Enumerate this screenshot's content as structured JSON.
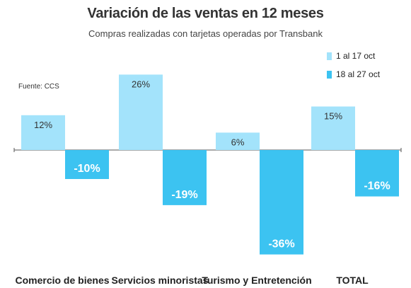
{
  "colors": {
    "series_a": "#a3e3fb",
    "series_b": "#3cc3f1",
    "axis": "#555555",
    "label_dark": "#333333",
    "label_light": "#ffffff"
  },
  "chart_data": {
    "type": "bar",
    "title": "Variación de las ventas en 12 meses",
    "subtitle": "Compras realizadas con tarjetas operadas por Transbank",
    "source": "Fuente: CCS",
    "categories": [
      "Comercio de bienes",
      "Servicios minoristas",
      "Turismo y Entretención",
      "TOTAL"
    ],
    "series": [
      {
        "name": "1 al 17 oct",
        "values": [
          12,
          26,
          6,
          15
        ],
        "labels": [
          "12%",
          "26%",
          "6%",
          "15%"
        ]
      },
      {
        "name": "18 al 27 oct",
        "values": [
          -10,
          -19,
          -36,
          -16
        ],
        "labels": [
          "-10%",
          "-19%",
          "-36%",
          "-16%"
        ]
      }
    ],
    "ylim": [
      -36,
      26
    ],
    "grid": false,
    "legend_position": "top-right"
  }
}
